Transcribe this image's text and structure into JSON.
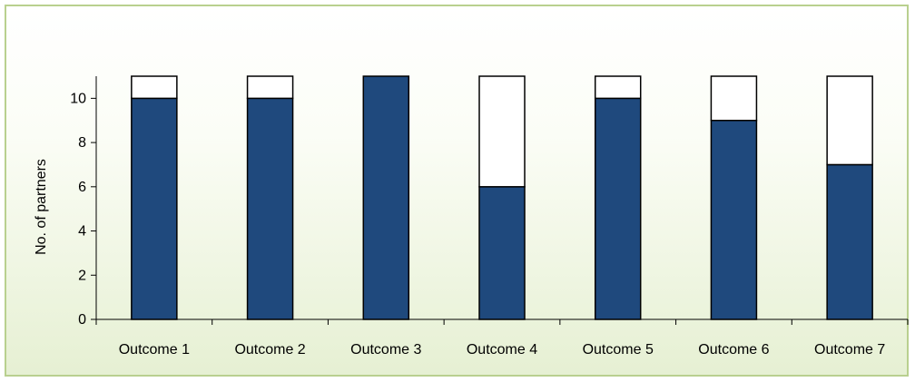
{
  "chart_data": {
    "type": "bar",
    "stacked": true,
    "title": "",
    "xlabel": "",
    "ylabel": "No. of partners",
    "ylim": [
      0,
      11
    ],
    "yticks": [
      0,
      2,
      4,
      6,
      8,
      10
    ],
    "grid": false,
    "legend": "none",
    "categories": [
      "Outcome 1",
      "Outcome 2",
      "Outcome 3",
      "Outcome 4",
      "Outcome 5",
      "Outcome 6",
      "Outcome 7"
    ],
    "series": [
      {
        "values": [
          10,
          10,
          11,
          6,
          10,
          9,
          7
        ],
        "color": "#1f497d"
      },
      {
        "values": [
          1,
          1,
          0,
          5,
          1,
          2,
          4
        ],
        "color": "#ffffff"
      }
    ]
  }
}
